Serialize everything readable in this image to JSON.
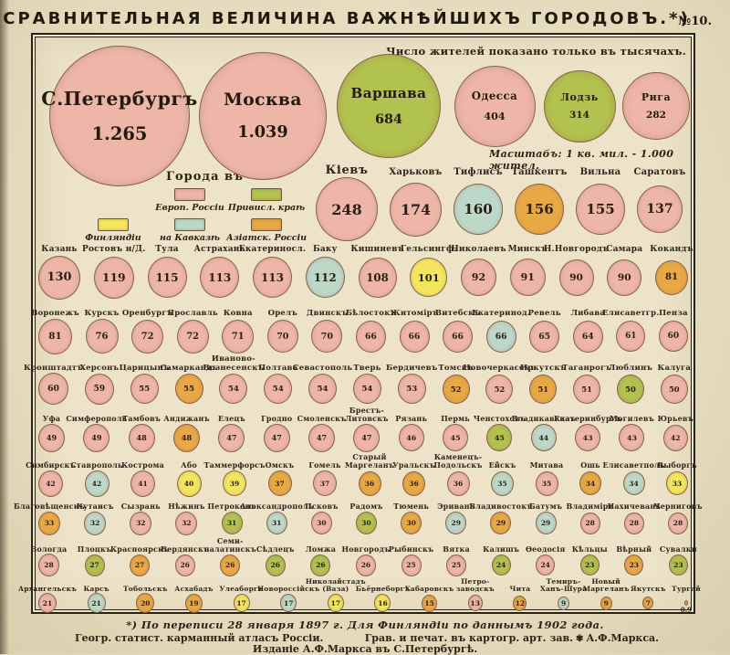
{
  "header": {
    "title": "СРАВНИТЕЛЬНАЯ  ВЕЛИЧИНА  ВАЖНѢЙШИХЪ  ГОРОДОВЪ.*)",
    "plate_no": "№10.",
    "unit_note": "Число жителей показано только въ тысячахъ.",
    "scale_note": "Масштабъ: 1 кв. мил. - 1.000 жител."
  },
  "legend": {
    "title": "Города въ",
    "items": [
      {
        "key": "european",
        "label": "Европ. Россіи",
        "color": "#edb6a9"
      },
      {
        "key": "vistula",
        "label": "Привисл. краѣ",
        "color": "#b2c24f"
      },
      {
        "key": "finland",
        "label": "Финляндіи",
        "color": "#f3e65f"
      },
      {
        "key": "caucasus",
        "label": "на Кавказѣ",
        "color": "#bcd8c8"
      },
      {
        "key": "asiatic",
        "label": "Азіатск. Россіи",
        "color": "#e8a945"
      }
    ]
  },
  "footer": {
    "footnote": "*) По переписи 28 января 1897 г.     Для Финляндіи по даннымъ 1902 года.",
    "left": "Геогр. статист. карманный атласъ Россіи.",
    "right": "Грав. и печат. въ картогр. арт. зав.",
    "publisher": "А.Ф.Маркса.",
    "bottom": "Изданіе А.Ф.Маркса въ С.Петербургѣ."
  },
  "chart_data": {
    "type": "proportional-circles",
    "unit": "тысячи жителей (thousands of inhabitants)",
    "color_coding": "region of the Russian Empire",
    "rows": [
      {
        "cities": [
          {
            "name": "С.Петербургъ",
            "pop": 1265,
            "display": "1.265",
            "region": "european"
          },
          {
            "name": "Москва",
            "pop": 1039,
            "display": "1.039",
            "region": "european"
          },
          {
            "name": "Варшава",
            "pop": 684,
            "display": "684",
            "region": "vistula"
          },
          {
            "name": "Одесса",
            "pop": 404,
            "display": "404",
            "region": "european"
          },
          {
            "name": "Лодзь",
            "pop": 314,
            "display": "314",
            "region": "vistula"
          },
          {
            "name": "Рига",
            "pop": 282,
            "display": "282",
            "region": "european"
          }
        ]
      },
      {
        "cities": [
          {
            "name": "Кіевъ",
            "pop": 248,
            "region": "european"
          },
          {
            "name": "Харьковъ",
            "pop": 174,
            "region": "european"
          },
          {
            "name": "Тифлисъ",
            "pop": 160,
            "region": "caucasus"
          },
          {
            "name": "Ташкентъ",
            "pop": 156,
            "region": "asiatic"
          },
          {
            "name": "Вильна",
            "pop": 155,
            "region": "european"
          },
          {
            "name": "Саратовъ",
            "pop": 137,
            "region": "european"
          }
        ]
      },
      {
        "cities": [
          {
            "name": "Казань",
            "pop": 130,
            "region": "european"
          },
          {
            "name": "Ростовъ н/Д.",
            "pop": 119,
            "region": "european"
          },
          {
            "name": "Тула",
            "pop": 115,
            "region": "european"
          },
          {
            "name": "Астрахань",
            "pop": 113,
            "region": "european"
          },
          {
            "name": "Екатериносл.",
            "pop": 113,
            "region": "european"
          },
          {
            "name": "Баку",
            "pop": 112,
            "region": "caucasus"
          },
          {
            "name": "Кишиневъ",
            "pop": 108,
            "region": "european"
          },
          {
            "name": "Гельсингф.",
            "pop": 101,
            "region": "finland"
          },
          {
            "name": "Николаевъ",
            "pop": 92,
            "region": "european"
          },
          {
            "name": "Минскъ",
            "pop": 91,
            "region": "european"
          },
          {
            "name": "Н.Новгородъ",
            "pop": 90,
            "region": "european"
          },
          {
            "name": "Самара",
            "pop": 90,
            "region": "european"
          },
          {
            "name": "Кокандъ",
            "pop": 81,
            "region": "asiatic"
          }
        ]
      },
      {
        "cities": [
          {
            "name": "Воронежъ",
            "pop": 81,
            "region": "european"
          },
          {
            "name": "Курскъ",
            "pop": 76,
            "region": "european"
          },
          {
            "name": "Оренбургъ",
            "pop": 72,
            "region": "european"
          },
          {
            "name": "Ярославль",
            "pop": 72,
            "region": "european"
          },
          {
            "name": "Ковна",
            "pop": 71,
            "region": "european"
          },
          {
            "name": "Орелъ",
            "pop": 70,
            "region": "european"
          },
          {
            "name": "Двинскъ",
            "pop": 70,
            "region": "european"
          },
          {
            "name": "Бѣлостокъ",
            "pop": 66,
            "region": "european"
          },
          {
            "name": "Житомiръ",
            "pop": 66,
            "region": "european"
          },
          {
            "name": "Витебскъ",
            "pop": 66,
            "region": "european"
          },
          {
            "name": "Екатеринод.",
            "pop": 66,
            "region": "caucasus"
          },
          {
            "name": "Ревель",
            "pop": 65,
            "region": "european"
          },
          {
            "name": "Либава",
            "pop": 64,
            "region": "european"
          },
          {
            "name": "Елисаветгр.",
            "pop": 61,
            "region": "european"
          },
          {
            "name": "Пенза",
            "pop": 60,
            "region": "european"
          }
        ]
      },
      {
        "cities": [
          {
            "name": "Кронштадтъ",
            "pop": 60,
            "region": "european"
          },
          {
            "name": "Херсонъ",
            "pop": 59,
            "region": "european"
          },
          {
            "name": "Царицынъ",
            "pop": 55,
            "region": "european"
          },
          {
            "name": "Самаркандъ",
            "pop": 55,
            "region": "asiatic"
          },
          {
            "name": "Иваново-\nВознесенскъ",
            "pop": 54,
            "region": "european"
          },
          {
            "name": "Полтава",
            "pop": 54,
            "region": "european"
          },
          {
            "name": "Севастополь",
            "pop": 54,
            "region": "european"
          },
          {
            "name": "Тверь",
            "pop": 54,
            "region": "european"
          },
          {
            "name": "Бердичевъ",
            "pop": 53,
            "region": "european"
          },
          {
            "name": "Томскъ",
            "pop": 52,
            "region": "asiatic"
          },
          {
            "name": "Новочеркасскъ",
            "pop": 52,
            "region": "european"
          },
          {
            "name": "Иркутскъ",
            "pop": 51,
            "region": "asiatic"
          },
          {
            "name": "Таганрогъ",
            "pop": 51,
            "region": "european"
          },
          {
            "name": "Люблинъ",
            "pop": 50,
            "region": "vistula"
          },
          {
            "name": "Калуга",
            "pop": 50,
            "region": "european"
          }
        ]
      },
      {
        "cities": [
          {
            "name": "Уфа",
            "pop": 49,
            "region": "european"
          },
          {
            "name": "Симферополь",
            "pop": 49,
            "region": "european"
          },
          {
            "name": "Тамбовъ",
            "pop": 48,
            "region": "european"
          },
          {
            "name": "Андижанъ",
            "pop": 48,
            "region": "asiatic"
          },
          {
            "name": "Елецъ",
            "pop": 47,
            "region": "european"
          },
          {
            "name": "Гродно",
            "pop": 47,
            "region": "european"
          },
          {
            "name": "Смоленскъ",
            "pop": 47,
            "region": "european"
          },
          {
            "name": "Брестъ-\nЛитовскъ",
            "pop": 47,
            "region": "european"
          },
          {
            "name": "Рязань",
            "pop": 46,
            "region": "european"
          },
          {
            "name": "Пермь",
            "pop": 45,
            "region": "european"
          },
          {
            "name": "Ченстоховъ",
            "pop": 45,
            "region": "vistula"
          },
          {
            "name": "Владикавказъ",
            "pop": 44,
            "region": "caucasus"
          },
          {
            "name": "Екатеринбургъ",
            "pop": 43,
            "region": "european"
          },
          {
            "name": "Могилевъ",
            "pop": 43,
            "region": "european"
          },
          {
            "name": "Юрьевъ",
            "pop": 42,
            "region": "european"
          }
        ]
      },
      {
        "cities": [
          {
            "name": "Симбирскъ",
            "pop": 42,
            "region": "european"
          },
          {
            "name": "Ставрополь",
            "pop": 42,
            "region": "caucasus"
          },
          {
            "name": "Кострома",
            "pop": 41,
            "region": "european"
          },
          {
            "name": "Або",
            "pop": 40,
            "region": "finland"
          },
          {
            "name": "Таммерфорсъ",
            "pop": 39,
            "region": "finland"
          },
          {
            "name": "Омскъ",
            "pop": 37,
            "region": "asiatic"
          },
          {
            "name": "Гомель",
            "pop": 37,
            "region": "european"
          },
          {
            "name": "Старый\nМаргеланъ",
            "pop": 36,
            "region": "asiatic"
          },
          {
            "name": "Уральскъ",
            "pop": 36,
            "region": "asiatic"
          },
          {
            "name": "Каменецъ-\nПодольскъ",
            "pop": 36,
            "region": "european"
          },
          {
            "name": "Ейскъ",
            "pop": 35,
            "region": "caucasus"
          },
          {
            "name": "Митава",
            "pop": 35,
            "region": "european"
          },
          {
            "name": "Ошь",
            "pop": 34,
            "region": "asiatic"
          },
          {
            "name": "Елисаветполь",
            "pop": 34,
            "region": "caucasus"
          },
          {
            "name": "Выборгъ",
            "pop": 33,
            "region": "finland"
          }
        ]
      },
      {
        "cities": [
          {
            "name": "Благовѣщенскъ",
            "pop": 33,
            "region": "asiatic"
          },
          {
            "name": "Кутаисъ",
            "pop": 32,
            "region": "caucasus"
          },
          {
            "name": "Сызрань",
            "pop": 32,
            "region": "european"
          },
          {
            "name": "Нѣжинъ",
            "pop": 32,
            "region": "european"
          },
          {
            "name": "Петроковъ",
            "pop": 31,
            "region": "vistula"
          },
          {
            "name": "Александрополь",
            "pop": 31,
            "region": "caucasus"
          },
          {
            "name": "Псковъ",
            "pop": 30,
            "region": "european"
          },
          {
            "name": "Радомъ",
            "pop": 30,
            "region": "vistula"
          },
          {
            "name": "Тюмень",
            "pop": 30,
            "region": "asiatic"
          },
          {
            "name": "Эривань",
            "pop": 29,
            "region": "caucasus"
          },
          {
            "name": "Владивостокъ",
            "pop": 29,
            "region": "asiatic"
          },
          {
            "name": "Батумъ",
            "pop": 29,
            "region": "caucasus"
          },
          {
            "name": "Владимiръ",
            "pop": 28,
            "region": "european"
          },
          {
            "name": "Нахичевань",
            "pop": 28,
            "region": "european"
          },
          {
            "name": "Черниговъ",
            "pop": 28,
            "region": "european"
          }
        ]
      },
      {
        "cities": [
          {
            "name": "Вологда",
            "pop": 28,
            "region": "european"
          },
          {
            "name": "Плоцкъ",
            "pop": 27,
            "region": "vistula"
          },
          {
            "name": "Красноярскъ",
            "pop": 27,
            "region": "asiatic"
          },
          {
            "name": "Бердянскъ",
            "pop": 26,
            "region": "european"
          },
          {
            "name": "Семи-\nпалатинскъ",
            "pop": 26,
            "region": "asiatic"
          },
          {
            "name": "Сѣдлецъ",
            "pop": 26,
            "region": "vistula"
          },
          {
            "name": "Ломжа",
            "pop": 26,
            "region": "vistula"
          },
          {
            "name": "Новгородъ",
            "pop": 26,
            "region": "european"
          },
          {
            "name": "Рыбинскъ",
            "pop": 25,
            "region": "european"
          },
          {
            "name": "Вятка",
            "pop": 25,
            "region": "european"
          },
          {
            "name": "Калишъ",
            "pop": 24,
            "region": "vistula"
          },
          {
            "name": "Ѳеодосія",
            "pop": 24,
            "region": "european"
          },
          {
            "name": "Кѣльцы",
            "pop": 23,
            "region": "vistula"
          },
          {
            "name": "Вѣрный",
            "pop": 23,
            "region": "asiatic"
          },
          {
            "name": "Сувалки",
            "pop": 23,
            "region": "vistula"
          }
        ]
      },
      {
        "cities": [
          {
            "name": "Архангельскъ",
            "pop": 21,
            "region": "european"
          },
          {
            "name": "Карсъ",
            "pop": 21,
            "region": "caucasus"
          },
          {
            "name": "Тобольскъ",
            "pop": 20,
            "region": "asiatic"
          },
          {
            "name": "Асхабадъ",
            "pop": 19,
            "region": "asiatic"
          },
          {
            "name": "Улеаборгъ",
            "pop": 17,
            "region": "finland"
          },
          {
            "name": "Новороссійскъ",
            "pop": 17,
            "region": "caucasus"
          },
          {
            "name": "Николайстадъ\n(Ваза)",
            "pop": 17,
            "region": "finland"
          },
          {
            "name": "Бьёрнеборгъ",
            "pop": 16,
            "region": "finland"
          },
          {
            "name": "Хабаровскъ",
            "pop": 15,
            "region": "asiatic"
          },
          {
            "name": "Петро-\nзаводскъ",
            "pop": 13,
            "region": "european"
          },
          {
            "name": "Чита",
            "pop": 12,
            "region": "asiatic"
          },
          {
            "name": "Темиръ-\nХанъ-Шура",
            "pop": 9,
            "region": "caucasus"
          },
          {
            "name": "Новый\nМаргеланъ",
            "pop": 9,
            "region": "asiatic"
          },
          {
            "name": "Якутскъ",
            "pop": 7,
            "region": "asiatic"
          },
          {
            "name": "Тургай",
            "pop": 0.9,
            "display": "0.9",
            "region": "asiatic"
          }
        ]
      }
    ]
  }
}
